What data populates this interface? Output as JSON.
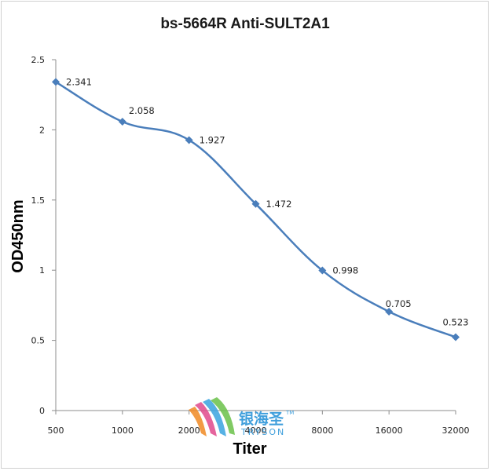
{
  "chart_data": {
    "type": "line",
    "title": "bs-5664R Anti-SULT2A1",
    "xlabel": "Titer",
    "ylabel": "OD450nm",
    "categories": [
      "500",
      "1000",
      "2000",
      "4000",
      "8000",
      "16000",
      "32000"
    ],
    "values": [
      2.341,
      2.058,
      1.927,
      1.472,
      0.998,
      0.705,
      0.523
    ],
    "data_labels": [
      "2.341",
      "2.058",
      "1.927",
      "1.472",
      "0.998",
      "0.705",
      "0.523"
    ],
    "yticks": [
      "0",
      "0.5",
      "1",
      "1.5",
      "2",
      "2.5"
    ],
    "ylim": [
      0,
      2.5
    ],
    "grid": false,
    "legend": "none",
    "line_color": "#4a7ebb"
  },
  "watermark": {
    "chinese": "银海圣",
    "english": "TRYSON",
    "tm": "TM"
  }
}
